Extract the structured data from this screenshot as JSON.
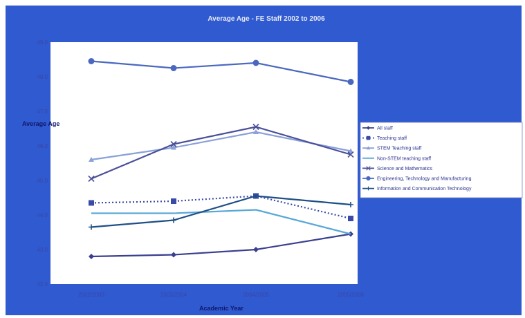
{
  "chart_data": {
    "type": "line",
    "title": "Average Age - FE Staff 2002 to 2006",
    "xlabel": "Academic Year",
    "ylabel": "Average Age",
    "categories": [
      "2002/2003",
      "2003/2004",
      "2004/2005",
      "2005/2006"
    ],
    "ylim": [
      42.0,
      49.0
    ],
    "yticks": [
      "42.0",
      "43.0",
      "44.0",
      "45.0",
      "46.0",
      "47.0",
      "48.0",
      "49.0"
    ],
    "grid": false,
    "legend_position": "right",
    "series": [
      {
        "name": "All staff",
        "values": [
          42.8,
          42.85,
          43.0,
          43.45
        ],
        "color": "#3a3f8f",
        "marker": "diamond",
        "dash": ""
      },
      {
        "name": "Teaching staff",
        "values": [
          44.35,
          44.4,
          44.55,
          43.9
        ],
        "color": "#3a4aa8",
        "marker": "square",
        "dash": "2,3"
      },
      {
        "name": "STEM Teaching staff",
        "values": [
          45.6,
          45.95,
          46.4,
          45.85
        ],
        "color": "#8aa0d8",
        "marker": "triangle",
        "dash": ""
      },
      {
        "name": "Non-STEM teaching staff",
        "values": [
          44.05,
          44.05,
          44.15,
          43.45
        ],
        "color": "#5aa8d8",
        "marker": "none",
        "dash": ""
      },
      {
        "name": "Science and Mathematics",
        "values": [
          45.05,
          46.05,
          46.55,
          45.75
        ],
        "color": "#4a4f98",
        "marker": "cross",
        "dash": ""
      },
      {
        "name": "Engineering, Technology and Manufacturing",
        "values": [
          48.45,
          48.25,
          48.4,
          47.85
        ],
        "color": "#4a68c0",
        "marker": "circle",
        "dash": ""
      },
      {
        "name": "Information and Communication Technology",
        "values": [
          43.65,
          43.85,
          44.55,
          44.3
        ],
        "color": "#1e4f86",
        "marker": "plus",
        "dash": ""
      }
    ]
  },
  "colors": {
    "frame_background": "#2f5ad0",
    "plot_background": "#ffffff",
    "legend_background": "#ffffff"
  }
}
